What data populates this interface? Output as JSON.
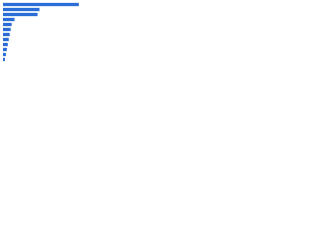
{
  "chart_data": {
    "type": "bar",
    "orientation": "horizontal",
    "color": "#2a6dd6",
    "values": [
      79,
      38,
      36,
      12,
      9,
      8,
      7,
      6,
      5,
      4,
      3,
      2
    ],
    "xlim": [
      0,
      100
    ]
  }
}
